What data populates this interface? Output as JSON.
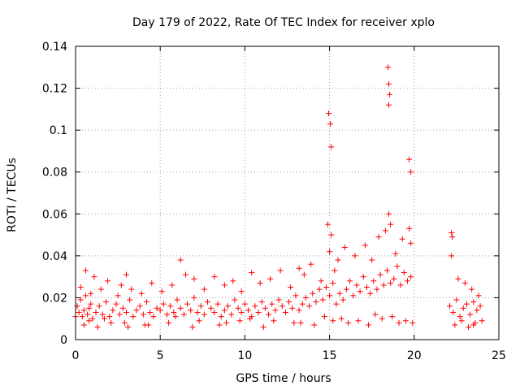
{
  "chart_data": {
    "type": "scatter",
    "title": "Day 179 of 2022, Rate Of TEC Index for receiver xplo",
    "xlabel": "GPS time / hours",
    "ylabel": "ROTI / TECUs",
    "xlim": [
      0,
      25
    ],
    "ylim": [
      0,
      0.14
    ],
    "xticks": [
      0,
      5,
      10,
      15,
      20,
      25
    ],
    "xtick_labels": [
      "0",
      "5",
      "10",
      "15",
      "20",
      "25"
    ],
    "yticks": [
      0,
      0.02,
      0.04,
      0.06,
      0.08,
      0.1,
      0.12,
      0.14
    ],
    "ytick_labels": [
      "0",
      "0.02",
      "0.04",
      "0.06",
      "0.08",
      "0.1",
      "0.12",
      "0.14"
    ],
    "grid": true,
    "marker": "+",
    "color": "#ff0000",
    "series": [
      {
        "x": [
          0.1,
          0.2,
          0.3,
          0.4,
          0.5,
          0.6,
          0.7,
          0.8,
          0.9,
          1.0,
          1.2,
          1.4,
          1.6,
          1.8,
          2.0,
          2.2,
          2.4,
          2.6,
          2.8,
          3.0,
          3.2,
          3.4,
          3.6,
          3.8,
          4.0,
          4.2,
          4.4,
          4.6,
          4.8,
          5.0,
          5.2,
          5.4,
          5.6,
          5.8,
          6.0,
          6.2,
          6.4,
          6.6,
          6.8,
          7.0,
          7.2,
          7.4,
          7.6,
          7.8,
          8.0,
          8.2,
          8.4,
          8.6,
          8.8,
          9.0,
          9.2,
          9.4,
          9.6,
          9.8,
          10.0,
          10.2,
          10.4,
          10.6,
          10.8,
          11.0,
          11.2,
          11.4,
          11.6,
          11.8,
          12.0,
          12.2,
          12.4,
          12.6,
          12.8,
          13.0,
          13.2,
          13.4,
          13.6,
          13.8,
          14.0,
          14.2,
          14.4,
          14.6,
          14.8,
          15.0,
          15.2,
          15.4,
          15.6,
          15.8,
          16.0,
          16.2,
          16.4,
          16.6,
          16.8,
          17.0,
          17.2,
          17.4,
          17.6,
          17.8,
          18.0,
          18.2,
          18.4,
          18.6,
          18.8,
          19.0,
          19.2,
          19.4,
          19.6,
          19.8,
          22.1,
          22.3,
          22.5,
          22.7,
          22.9,
          23.1,
          23.3,
          23.5,
          23.7,
          23.9,
          0.3,
          0.6,
          0.9,
          1.1,
          1.5,
          1.9,
          2.5,
          2.7,
          3.0,
          3.3,
          3.9,
          4.5,
          5.1,
          5.7,
          6.2,
          6.5,
          7.0,
          7.6,
          8.2,
          8.8,
          9.3,
          9.8,
          10.4,
          10.9,
          11.5,
          12.1,
          12.7,
          13.2,
          13.5,
          13.9,
          14.5,
          14.9,
          15.0,
          15.1,
          15.3,
          15.5,
          15.9,
          16.5,
          17.1,
          17.5,
          17.9,
          18.3,
          18.5,
          18.6,
          18.9,
          19.3,
          19.7,
          19.8,
          22.2,
          22.6,
          23.0,
          23.4,
          23.8,
          0.5,
          1.3,
          2.1,
          3.1,
          4.1,
          5.5,
          6.9,
          8.5,
          9.7,
          11.1,
          12.9,
          14.1,
          15.2,
          16.1,
          17.3,
          18.1,
          19.1,
          19.5,
          22.4,
          23.2,
          23.6,
          0.0,
          0.8,
          1.7,
          2.9,
          4.3,
          5.9,
          7.3,
          8.9,
          10.3,
          11.7,
          13.3,
          14.7,
          15.7,
          16.7,
          17.7,
          18.7,
          19.9,
          22.8,
          23.5,
          24.0,
          14.95,
          15.05,
          15.1,
          18.45,
          18.5,
          18.55,
          18.5,
          19.7,
          19.8,
          22.2,
          22.25
        ],
        "y": [
          0.016,
          0.013,
          0.019,
          0.011,
          0.014,
          0.021,
          0.012,
          0.015,
          0.017,
          0.01,
          0.013,
          0.016,
          0.012,
          0.018,
          0.011,
          0.014,
          0.017,
          0.012,
          0.015,
          0.013,
          0.019,
          0.011,
          0.014,
          0.016,
          0.012,
          0.018,
          0.013,
          0.011,
          0.015,
          0.014,
          0.017,
          0.012,
          0.016,
          0.013,
          0.019,
          0.015,
          0.012,
          0.017,
          0.014,
          0.02,
          0.013,
          0.016,
          0.012,
          0.018,
          0.015,
          0.013,
          0.017,
          0.011,
          0.014,
          0.016,
          0.012,
          0.019,
          0.015,
          0.013,
          0.017,
          0.014,
          0.011,
          0.016,
          0.013,
          0.018,
          0.015,
          0.012,
          0.017,
          0.014,
          0.019,
          0.016,
          0.013,
          0.018,
          0.015,
          0.021,
          0.014,
          0.017,
          0.02,
          0.016,
          0.022,
          0.018,
          0.024,
          0.019,
          0.025,
          0.021,
          0.027,
          0.017,
          0.022,
          0.019,
          0.024,
          0.028,
          0.021,
          0.026,
          0.023,
          0.03,
          0.025,
          0.022,
          0.028,
          0.024,
          0.031,
          0.026,
          0.033,
          0.027,
          0.029,
          0.035,
          0.026,
          0.032,
          0.028,
          0.03,
          0.016,
          0.013,
          0.019,
          0.011,
          0.015,
          0.017,
          0.012,
          0.018,
          0.014,
          0.016,
          0.025,
          0.033,
          0.022,
          0.03,
          0.024,
          0.028,
          0.021,
          0.026,
          0.031,
          0.024,
          0.022,
          0.027,
          0.023,
          0.026,
          0.038,
          0.031,
          0.029,
          0.024,
          0.03,
          0.026,
          0.028,
          0.023,
          0.032,
          0.027,
          0.029,
          0.033,
          0.025,
          0.034,
          0.031,
          0.036,
          0.028,
          0.055,
          0.042,
          0.05,
          0.033,
          0.038,
          0.044,
          0.04,
          0.045,
          0.038,
          0.049,
          0.052,
          0.06,
          0.055,
          0.041,
          0.048,
          0.053,
          0.046,
          0.04,
          0.029,
          0.027,
          0.024,
          0.021,
          0.007,
          0.006,
          0.008,
          0.006,
          0.007,
          0.008,
          0.006,
          0.007,
          0.009,
          0.006,
          0.008,
          0.007,
          0.009,
          0.008,
          0.007,
          0.01,
          0.008,
          0.009,
          0.007,
          0.006,
          0.008,
          0.011,
          0.009,
          0.01,
          0.008,
          0.007,
          0.011,
          0.009,
          0.008,
          0.01,
          0.009,
          0.008,
          0.011,
          0.01,
          0.009,
          0.012,
          0.011,
          0.008,
          0.009,
          0.007,
          0.009,
          0.108,
          0.103,
          0.092,
          0.13,
          0.122,
          0.117,
          0.112,
          0.086,
          0.08,
          0.051,
          0.049
        ]
      }
    ]
  }
}
